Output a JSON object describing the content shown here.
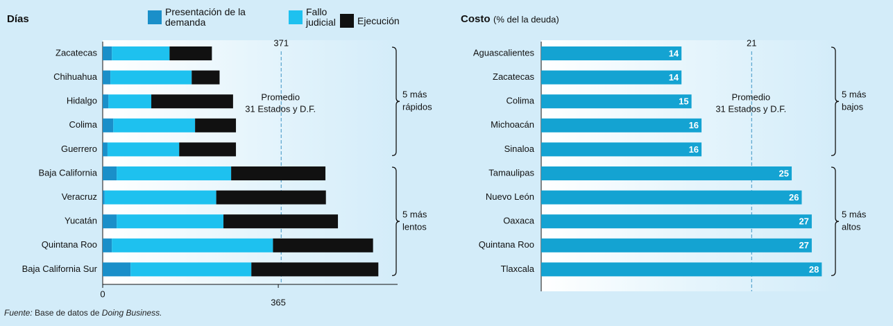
{
  "chart_data": [
    {
      "type": "stacked_bar",
      "title": "Días",
      "categories": [
        "Zacatecas",
        "Chihuahua",
        "Hidalgo",
        "Colima",
        "Guerrero",
        "Baja California",
        "Veracruz",
        "Yucatán",
        "Quintana Roo",
        "Baja California Sur"
      ],
      "series": [
        {
          "name": "Presentación de la demanda",
          "color": "#1a8fc9",
          "values": [
            19,
            16,
            12,
            22,
            10,
            29,
            4,
            29,
            19,
            58
          ]
        },
        {
          "name": "Fallo judicial",
          "color": "#1ec1ef",
          "values": [
            120,
            169,
            89,
            170,
            149,
            238,
            232,
            222,
            335,
            251
          ]
        },
        {
          "name": "Ejecución",
          "color": "#111111",
          "values": [
            88,
            58,
            170,
            85,
            118,
            196,
            228,
            238,
            208,
            264
          ]
        }
      ],
      "xlim": [
        0,
        600
      ],
      "xticks": [
        0,
        365
      ],
      "reference": 371,
      "annotation": [
        "Promedio",
        "31 Estados y D.F."
      ],
      "groups": [
        [
          "5 más",
          "rápidos"
        ],
        [
          "5 más",
          "lentos"
        ]
      ],
      "note": [
        "Fuente:",
        "Base de datos de",
        "Doing Business."
      ]
    },
    {
      "type": "bar",
      "title": "Costo",
      "subtitle": "(% del la deuda)",
      "categories": [
        "Aguascalientes",
        "Zacatecas",
        "Colima",
        "Michoacán",
        "Sinaloa",
        "Tamaulipas",
        "Nuevo León",
        "Oaxaca",
        "Quintana Roo",
        "Tlaxcala"
      ],
      "values": [
        14,
        14,
        15,
        16,
        16,
        25,
        26,
        27,
        27,
        28
      ],
      "color": "#14a3d2",
      "xlim": [
        0,
        34
      ],
      "reference": 21,
      "annotation": [
        "Promedio",
        "31 Estados y D.F."
      ],
      "groups": [
        [
          "5 más",
          "bajos"
        ],
        [
          "5 más",
          "altos"
        ]
      ]
    }
  ]
}
